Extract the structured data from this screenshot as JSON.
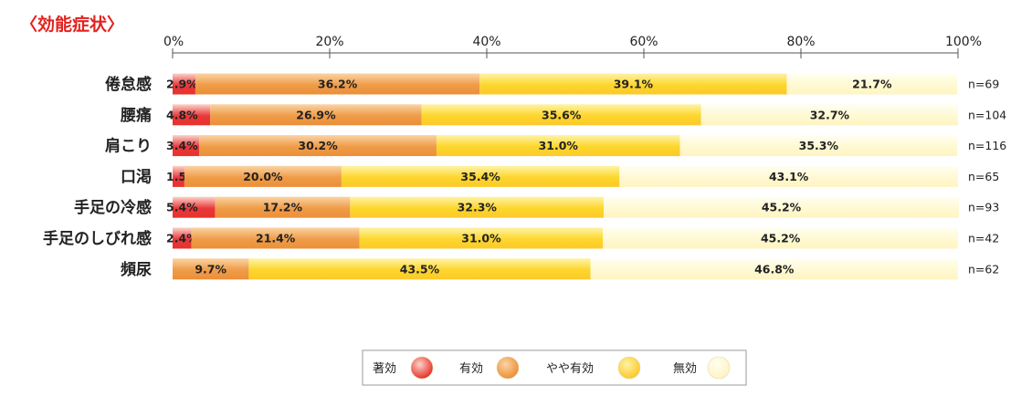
{
  "title": "〈効能症状〉",
  "colors": {
    "title": "#e3221f",
    "text": "#222222",
    "axis": "#555555",
    "legend_border": "#9a9a9a"
  },
  "legend": [
    {
      "label": "著効",
      "color": "#e9383b",
      "gradient": [
        "#fbd3c8",
        "#e7322b"
      ]
    },
    {
      "label": "有効",
      "color": "#ef9c48",
      "gradient": [
        "#fbd3a4",
        "#ec8f38"
      ]
    },
    {
      "label": "やや有効",
      "color": "#fdd62c",
      "gradient": [
        "#fef3a6",
        "#fcc92a"
      ]
    },
    {
      "label": "無効",
      "color": "#fff9d2",
      "gradient": [
        "#fffef2",
        "#fff4c2"
      ]
    }
  ],
  "chart_data": {
    "type": "bar",
    "orientation": "horizontal",
    "stacked": true,
    "percent": true,
    "xlim": [
      0,
      100
    ],
    "ticks": [
      "0%",
      "20%",
      "40%",
      "60%",
      "80%",
      "100%"
    ],
    "categories": [
      "倦怠感",
      "腰痛",
      "肩こり",
      "口渇",
      "手足の冷感",
      "手足のしびれ感",
      "頻尿"
    ],
    "n_labels": [
      "n=69",
      "n=104",
      "n=116",
      "n=65",
      "n=93",
      "n=42",
      "n=62"
    ],
    "series": [
      {
        "name": "著効",
        "values": [
          2.9,
          4.8,
          3.4,
          1.5,
          5.4,
          2.4,
          0
        ],
        "labels": [
          "2.9%",
          "4.8%",
          "3.4%",
          "1.5%",
          "5.4%",
          "2.4%",
          ""
        ]
      },
      {
        "name": "有効",
        "values": [
          36.2,
          26.9,
          30.2,
          20.0,
          17.2,
          21.4,
          9.7
        ],
        "labels": [
          "36.2%",
          "26.9%",
          "30.2%",
          "20.0%",
          "17.2%",
          "21.4%",
          "9.7%"
        ]
      },
      {
        "name": "やや有効",
        "values": [
          39.1,
          35.6,
          31.0,
          35.4,
          32.3,
          31.0,
          43.5
        ],
        "labels": [
          "39.1%",
          "35.6%",
          "31.0%",
          "35.4%",
          "32.3%",
          "31.0%",
          "43.5%"
        ]
      },
      {
        "name": "無効",
        "values": [
          21.7,
          32.7,
          35.3,
          43.1,
          45.2,
          45.2,
          46.8
        ],
        "labels": [
          "21.7%",
          "32.7%",
          "35.3%",
          "43.1%",
          "45.2%",
          "45.2%",
          "46.8%"
        ]
      }
    ]
  }
}
